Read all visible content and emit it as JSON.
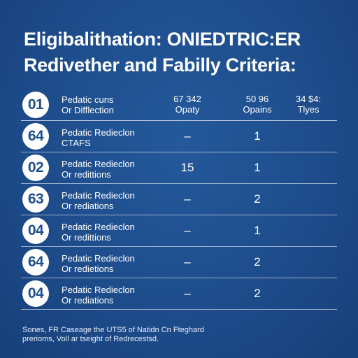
{
  "title": {
    "line1": "Eligibalithation: ONIEDTRIC:ER",
    "line2": "Redivether and Fabilly Criteria:"
  },
  "header": {
    "badge": "01",
    "label_line1": "Pedatic cuns",
    "label_line2": "Or Difflection",
    "col1_line1": "67 342",
    "col1_line2": "Opaty",
    "col2_line1": "50 96",
    "col2_line2": "Opains",
    "col3_line1": "34 $4:",
    "col3_line2": "Tlyes"
  },
  "rows": [
    {
      "badge": "64",
      "label_line1": "Pedatic Redieclon",
      "label_line2": "CTAFS",
      "c1": "–",
      "c2": "1",
      "c3": ""
    },
    {
      "badge": "02",
      "label_line1": "Pedatic Redieclon",
      "label_line2": "Or redittions",
      "c1": "15",
      "c2": "1",
      "c3": ""
    },
    {
      "badge": "63",
      "label_line1": "Pedatic Redieclon",
      "label_line2": "Or rediations",
      "c1": "–",
      "c2": "2",
      "c3": ""
    },
    {
      "badge": "04",
      "label_line1": "Pedatic Redieclon",
      "label_line2": "Or redittions",
      "c1": "–",
      "c2": "1",
      "c3": ""
    },
    {
      "badge": "64",
      "label_line1": "Pedatic Redieclon",
      "label_line2": "Or redietions",
      "c1": "–",
      "c2": "2",
      "c3": ""
    },
    {
      "badge": "04",
      "label_line1": "Pedatic Redieclon",
      "label_line2": "Or rediations",
      "c1": "–",
      "c2": "2",
      "c3": ""
    }
  ],
  "footnote": {
    "line1": "Sones, FR Caseage the UTS5 of Natidn Cn Fteghard",
    "line2": "prerioms, Voll ar tseight of Redrecestsd."
  },
  "colors": {
    "background": "#1e4f8f",
    "badge_fill": "#ffffff",
    "badge_text": "#1e4f8f"
  }
}
